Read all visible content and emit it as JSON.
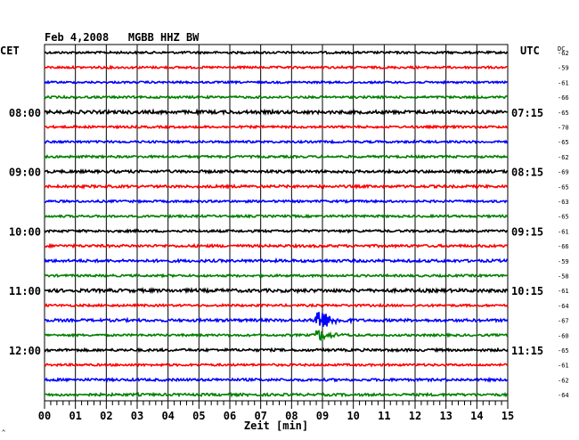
{
  "header": {
    "title": "Feb 4,2008   MGBB HHZ BW",
    "left_timezone": "CET",
    "right_timezone": "UTC",
    "dc_label": "DC",
    "footer_mark": "^"
  },
  "chart_data": {
    "type": "line",
    "title": "Feb 4,2008   MGBB HHZ BW",
    "xlabel": "Zeit [min]",
    "xlim": [
      0,
      15
    ],
    "x_ticks": [
      "00",
      "01",
      "02",
      "03",
      "04",
      "05",
      "06",
      "07",
      "08",
      "09",
      "10",
      "11",
      "12",
      "13",
      "14",
      "15"
    ],
    "grid": true,
    "trace_colors": [
      "#000000",
      "#ff0000",
      "#0000ff",
      "#008000"
    ],
    "traces": [
      {
        "dc": "-62",
        "color": "#000000",
        "amp": 1.2
      },
      {
        "dc": "-59",
        "color": "#ff0000",
        "amp": 1.2
      },
      {
        "dc": "-61",
        "color": "#0000ff",
        "amp": 1.1
      },
      {
        "dc": "-66",
        "color": "#008000",
        "amp": 1.2
      },
      {
        "dc": "-65",
        "color": "#000000",
        "amp": 1.8,
        "left_time": "08:00",
        "right_time": "07:15"
      },
      {
        "dc": "-70",
        "color": "#ff0000",
        "amp": 1.2
      },
      {
        "dc": "-65",
        "color": "#0000ff",
        "amp": 1.2
      },
      {
        "dc": "-62",
        "color": "#008000",
        "amp": 1.2
      },
      {
        "dc": "-69",
        "color": "#000000",
        "amp": 1.5,
        "left_time": "09:00",
        "right_time": "08:15"
      },
      {
        "dc": "-65",
        "color": "#ff0000",
        "amp": 1.4
      },
      {
        "dc": "-63",
        "color": "#0000ff",
        "amp": 1.2
      },
      {
        "dc": "-65",
        "color": "#008000",
        "amp": 1.2
      },
      {
        "dc": "-61",
        "color": "#000000",
        "amp": 1.3,
        "left_time": "10:00",
        "right_time": "09:15"
      },
      {
        "dc": "-66",
        "color": "#ff0000",
        "amp": 1.4
      },
      {
        "dc": "-59",
        "color": "#0000ff",
        "amp": 1.5
      },
      {
        "dc": "-58",
        "color": "#008000",
        "amp": 1.2
      },
      {
        "dc": "-61",
        "color": "#000000",
        "amp": 1.8,
        "left_time": "11:00",
        "right_time": "10:15"
      },
      {
        "dc": "-64",
        "color": "#ff0000",
        "amp": 1.2
      },
      {
        "dc": "-67",
        "color": "#0000ff",
        "amp": 1.5,
        "event_min": 8.85,
        "event_amp": 16
      },
      {
        "dc": "-60",
        "color": "#008000",
        "amp": 1.2,
        "event_min": 8.85,
        "event_amp": 7
      },
      {
        "dc": "-65",
        "color": "#000000",
        "amp": 1.4,
        "left_time": "12:00",
        "right_time": "11:15"
      },
      {
        "dc": "-61",
        "color": "#ff0000",
        "amp": 1.2
      },
      {
        "dc": "-62",
        "color": "#0000ff",
        "amp": 1.4
      },
      {
        "dc": "-64",
        "color": "#008000",
        "amp": 1.4
      }
    ]
  }
}
